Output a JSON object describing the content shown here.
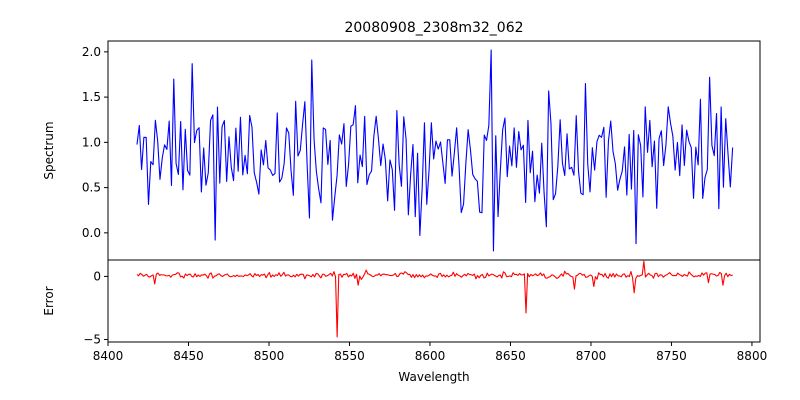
{
  "chart_data": [
    {
      "type": "line",
      "title": "20080908_2308m32_062",
      "xlabel": "",
      "ylabel": "Spectrum",
      "xlim": [
        8400,
        8805
      ],
      "ylim": [
        -0.3,
        2.12
      ],
      "yticks": [
        0.0,
        0.5,
        1.0,
        1.5,
        2.0
      ],
      "ytick_labels": [
        "0.0",
        "0.5",
        "1.0",
        "1.5",
        "2.0"
      ],
      "series": [
        {
          "name": "spectrum",
          "color": "#0000ff",
          "x_start": 8418,
          "x_end": 8788,
          "points": 260,
          "baseline": 0.88,
          "noise_amplitude": 0.32,
          "seed": 11,
          "features": [
            {
              "x": 8452,
              "y": 1.87
            },
            {
              "x": 8467,
              "y": -0.08
            },
            {
              "x": 8527,
              "y": 1.91
            },
            {
              "x": 8540,
              "y": 0.14
            },
            {
              "x": 8638,
              "y": 2.02
            },
            {
              "x": 8639,
              "y": -0.2
            },
            {
              "x": 8697,
              "y": 1.65
            },
            {
              "x": 8728,
              "y": -0.12
            },
            {
              "x": 8441,
              "y": 1.7
            }
          ]
        }
      ],
      "grid": false
    },
    {
      "type": "line",
      "xlabel": "Wavelength",
      "ylabel": "Error",
      "xlim": [
        8400,
        8805
      ],
      "ylim": [
        -5.2,
        1.3
      ],
      "xticks": [
        8400,
        8450,
        8500,
        8550,
        8600,
        8650,
        8700,
        8750,
        8800
      ],
      "xtick_labels": [
        "8400",
        "8450",
        "8500",
        "8550",
        "8600",
        "8650",
        "8700",
        "8750",
        "8800"
      ],
      "yticks": [
        0,
        -5
      ],
      "ytick_labels": [
        "0",
        "−5"
      ],
      "series": [
        {
          "name": "error",
          "color": "#ff0000",
          "x_start": 8418,
          "x_end": 8788,
          "points": 370,
          "baseline": 0.1,
          "noise_amplitude": 0.12,
          "seed": 5,
          "features": [
            {
              "x": 8429,
              "y": -0.6
            },
            {
              "x": 8542,
              "y": -4.8
            },
            {
              "x": 8555,
              "y": -0.7
            },
            {
              "x": 8560,
              "y": 0.5
            },
            {
              "x": 8660,
              "y": -2.9
            },
            {
              "x": 8690,
              "y": -1.0
            },
            {
              "x": 8702,
              "y": -0.8
            },
            {
              "x": 8727,
              "y": -1.3
            },
            {
              "x": 8733,
              "y": 1.2
            },
            {
              "x": 8773,
              "y": -0.5
            },
            {
              "x": 8782,
              "y": -0.7
            }
          ]
        }
      ],
      "grid": false
    }
  ]
}
